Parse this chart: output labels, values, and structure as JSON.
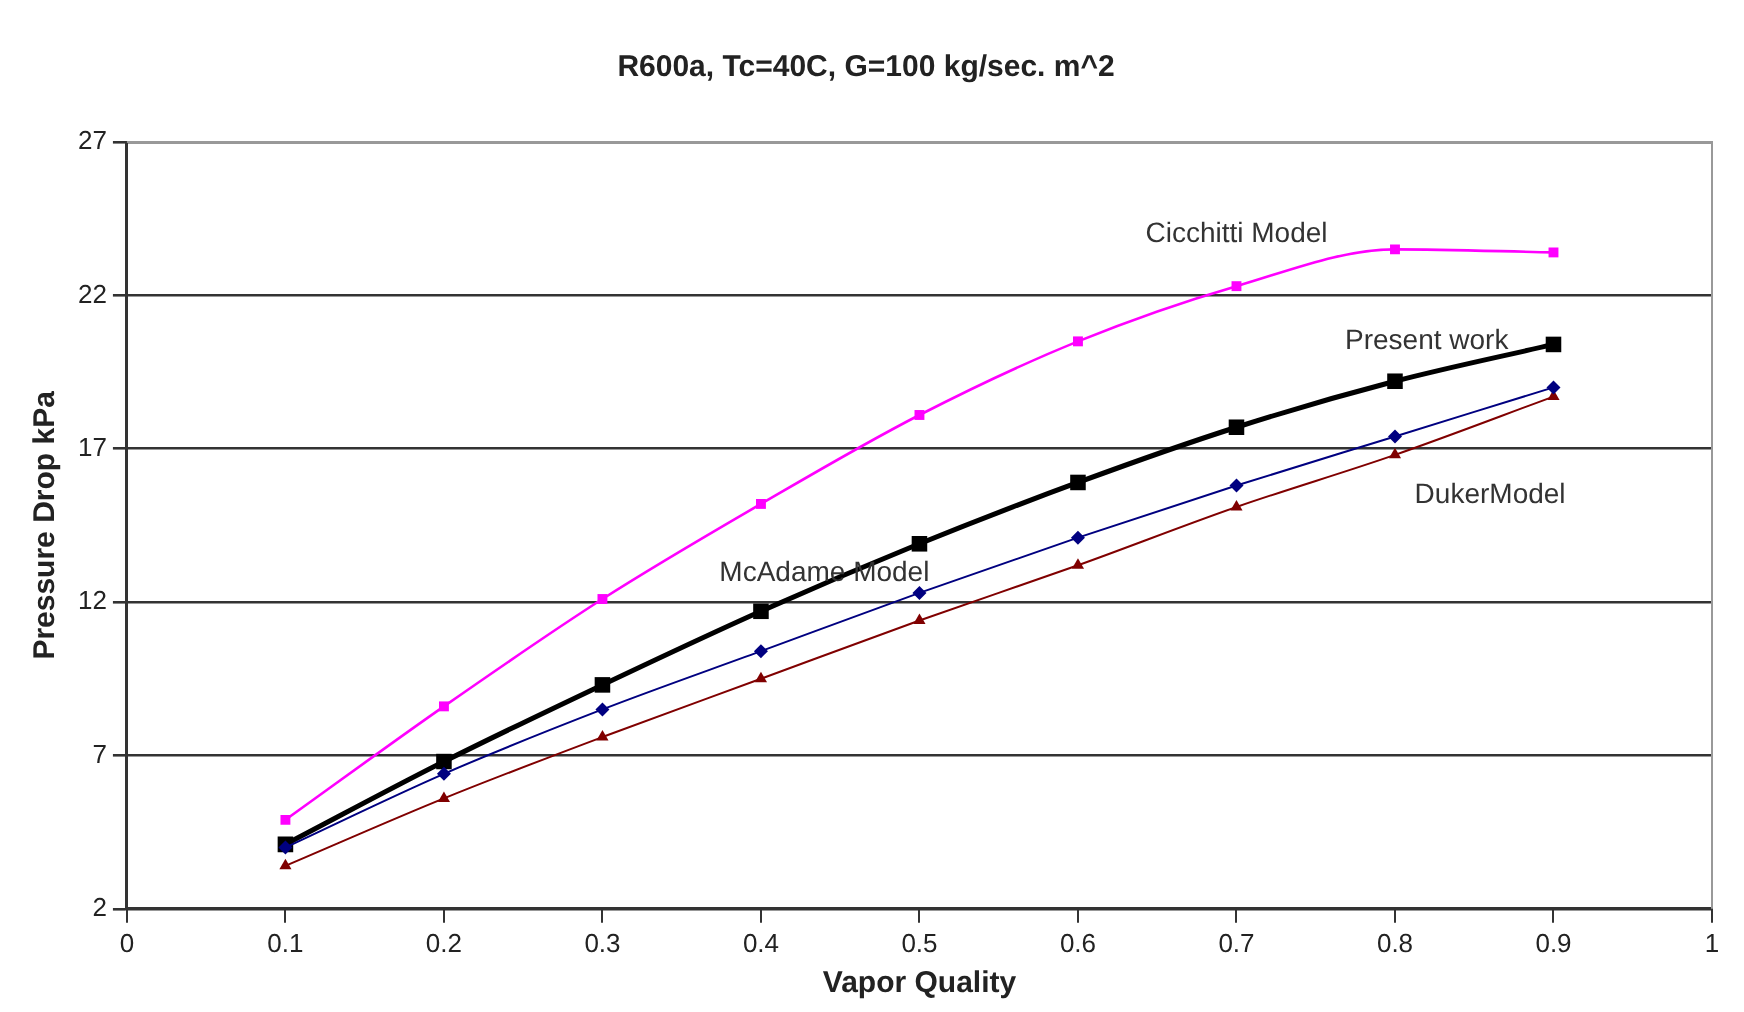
{
  "chart_data": {
    "type": "line",
    "title": "R600a, Tc=40C, G=100 kg/sec. m^2",
    "xlabel": "Vapor Quality",
    "ylabel": "Pressure Drop kPa",
    "x": [
      0.1,
      0.2,
      0.3,
      0.4,
      0.5,
      0.6,
      0.7,
      0.8,
      0.9
    ],
    "series": [
      {
        "name": "Cicchitti Model",
        "color": "#ff00ff",
        "marker": "square",
        "values": [
          4.9,
          8.6,
          12.1,
          15.2,
          18.1,
          20.5,
          22.3,
          23.5,
          23.4
        ]
      },
      {
        "name": "Present work",
        "color": "#000000",
        "marker": "square",
        "values": [
          4.1,
          6.8,
          9.3,
          11.7,
          13.9,
          15.9,
          17.7,
          19.2,
          20.4
        ]
      },
      {
        "name": "McAdame Model",
        "color": "#000080",
        "marker": "diamond",
        "values": [
          4.0,
          6.4,
          8.5,
          10.4,
          12.3,
          14.1,
          15.8,
          17.4,
          19.0
        ]
      },
      {
        "name": "DukerModel",
        "color": "#800000",
        "marker": "triangle",
        "values": [
          3.4,
          5.6,
          7.6,
          9.5,
          11.4,
          13.2,
          15.1,
          16.8,
          18.7
        ]
      }
    ],
    "xlim": [
      0,
      1
    ],
    "xticks": [
      0,
      0.1,
      0.2,
      0.3,
      0.4,
      0.5,
      0.6,
      0.7,
      0.8,
      0.9,
      1
    ],
    "ylim": [
      2,
      27
    ],
    "yticks": [
      2,
      7,
      12,
      17,
      22,
      27
    ],
    "grid": "y",
    "legend": false
  }
}
